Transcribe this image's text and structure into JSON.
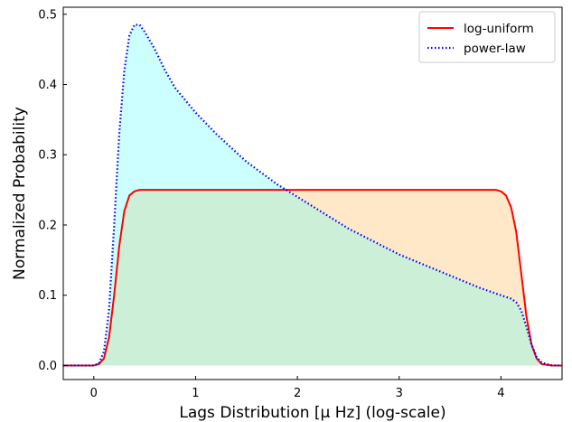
{
  "chart_data": {
    "type": "area",
    "title": "",
    "xlabel": "Lags Distribution [μ Hz]  (log-scale)",
    "ylabel": "Normalized Probability",
    "xlim": [
      -0.3,
      4.6
    ],
    "ylim": [
      -0.02,
      0.51
    ],
    "x_ticks": [
      0,
      1,
      2,
      3,
      4
    ],
    "y_ticks": [
      0.0,
      0.1,
      0.2,
      0.3,
      0.4,
      0.5
    ],
    "x_tick_labels": [
      "0",
      "1",
      "2",
      "3",
      "4"
    ],
    "y_tick_labels": [
      "0.0",
      "0.1",
      "0.2",
      "0.3",
      "0.4",
      "0.5"
    ],
    "grid": false,
    "legend_position": "top-right",
    "series": [
      {
        "name": "log-uniform",
        "style": "solid",
        "color": "#ff0000",
        "fill": "#ffe8c8",
        "x": [
          -0.3,
          0.0,
          0.05,
          0.1,
          0.15,
          0.2,
          0.25,
          0.3,
          0.35,
          0.4,
          0.45,
          0.5,
          0.6,
          1.0,
          2.0,
          3.0,
          3.8,
          3.9,
          3.95,
          4.0,
          4.05,
          4.1,
          4.15,
          4.2,
          4.25,
          4.3,
          4.35,
          4.4,
          4.5,
          4.6
        ],
        "y": [
          0.0,
          0.0,
          0.002,
          0.01,
          0.04,
          0.1,
          0.17,
          0.22,
          0.242,
          0.248,
          0.25,
          0.25,
          0.25,
          0.25,
          0.25,
          0.25,
          0.25,
          0.25,
          0.25,
          0.248,
          0.242,
          0.225,
          0.19,
          0.13,
          0.07,
          0.03,
          0.01,
          0.002,
          0.0,
          0.0
        ]
      },
      {
        "name": "power-law",
        "style": "dotted",
        "color": "#0000ff",
        "fill": "#ccffff",
        "x": [
          -0.3,
          0.0,
          0.05,
          0.1,
          0.15,
          0.2,
          0.25,
          0.3,
          0.35,
          0.4,
          0.45,
          0.5,
          0.6,
          0.7,
          0.8,
          1.0,
          1.2,
          1.5,
          1.8,
          2.0,
          2.5,
          3.0,
          3.5,
          3.8,
          4.0,
          4.1,
          4.15,
          4.2,
          4.25,
          4.3,
          4.35,
          4.4,
          4.5,
          4.6
        ],
        "y": [
          0.0,
          0.0,
          0.003,
          0.02,
          0.08,
          0.2,
          0.33,
          0.42,
          0.47,
          0.485,
          0.485,
          0.475,
          0.45,
          0.42,
          0.395,
          0.36,
          0.33,
          0.29,
          0.258,
          0.24,
          0.195,
          0.158,
          0.128,
          0.11,
          0.1,
          0.095,
          0.09,
          0.078,
          0.055,
          0.03,
          0.012,
          0.004,
          0.0,
          0.0
        ]
      }
    ]
  }
}
